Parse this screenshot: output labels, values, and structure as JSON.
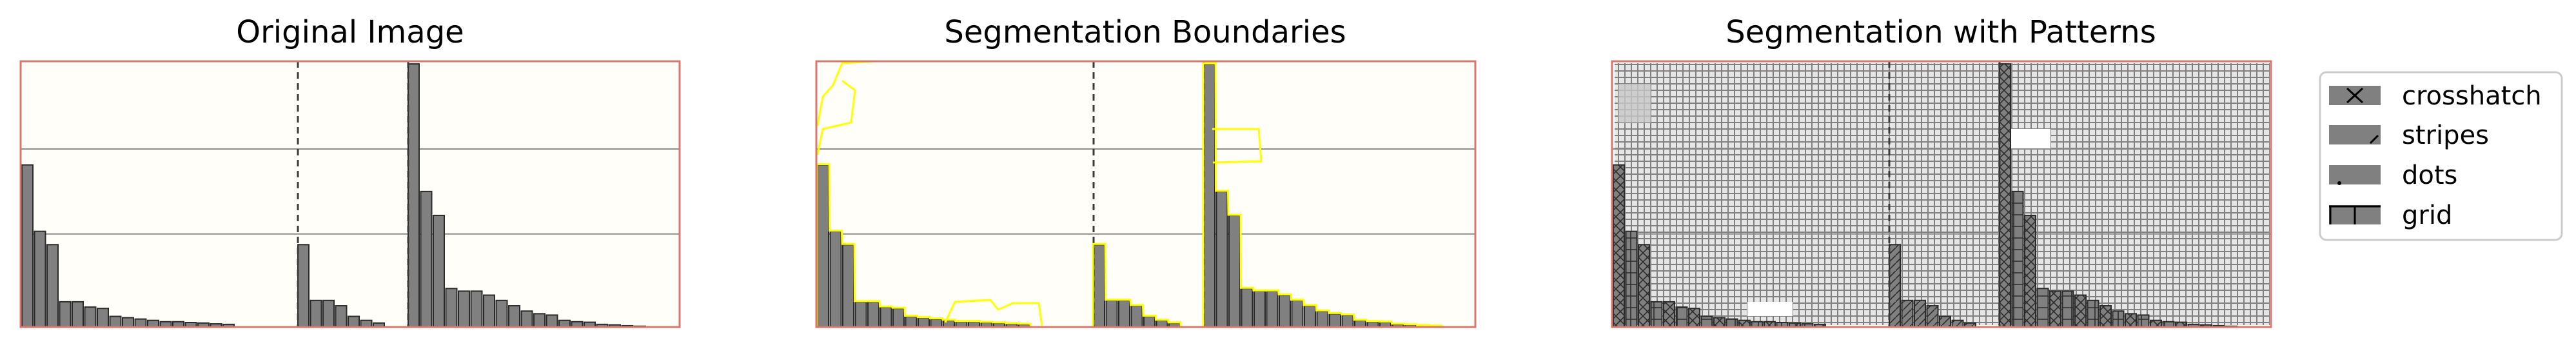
{
  "titles": {
    "panel1": "Original Image",
    "panel2": "Segmentation Boundaries",
    "panel3": "Segmentation with Patterns"
  },
  "legend": {
    "items": [
      {
        "label": "crosshatch",
        "pattern": "x"
      },
      {
        "label": "stripes",
        "pattern": "/"
      },
      {
        "label": "dots",
        "pattern": "."
      },
      {
        "label": "grid",
        "pattern": "+"
      }
    ]
  },
  "colors": {
    "background": "#fffef8",
    "frame": "#d9776d",
    "bar_fill": "#808080",
    "bar_edge": "#2b2b2b",
    "gridline": "#8c8c8c",
    "divider": "#3a3a3a",
    "boundary": "#ffff00",
    "hatch_light": "#e6e6e6"
  },
  "chart_data": [
    {
      "type": "bar",
      "title": "Original Image",
      "groups": [
        {
          "values": [
            0.61,
            0.36,
            0.31,
            0.095,
            0.095,
            0.075,
            0.07,
            0.04,
            0.035,
            0.03,
            0.025,
            0.02,
            0.02,
            0.017,
            0.015,
            0.012,
            0.01
          ]
        },
        {
          "values": [
            0.31,
            0.1,
            0.1,
            0.08,
            0.04,
            0.025,
            0.015
          ]
        },
        {
          "values": [
            0.99,
            0.51,
            0.42,
            0.145,
            0.135,
            0.135,
            0.12,
            0.1,
            0.08,
            0.06,
            0.05,
            0.045,
            0.025,
            0.02,
            0.018,
            0.01,
            0.008,
            0.005,
            0.003
          ]
        }
      ],
      "ylim": [
        0,
        1
      ],
      "gridlines_y": [
        0.35,
        0.67
      ],
      "dividers_after_group": [
        1,
        2
      ],
      "axes_ticks": "none"
    },
    {
      "type": "bar",
      "title": "Segmentation Boundaries",
      "same_data_as": "Original Image",
      "overlay": "segmentation boundaries"
    },
    {
      "type": "bar",
      "title": "Segmentation with Patterns",
      "same_data_as": "Original Image",
      "overlay": "hatch patterns",
      "legend": [
        "crosshatch",
        "stripes",
        "dots",
        "grid"
      ]
    }
  ]
}
